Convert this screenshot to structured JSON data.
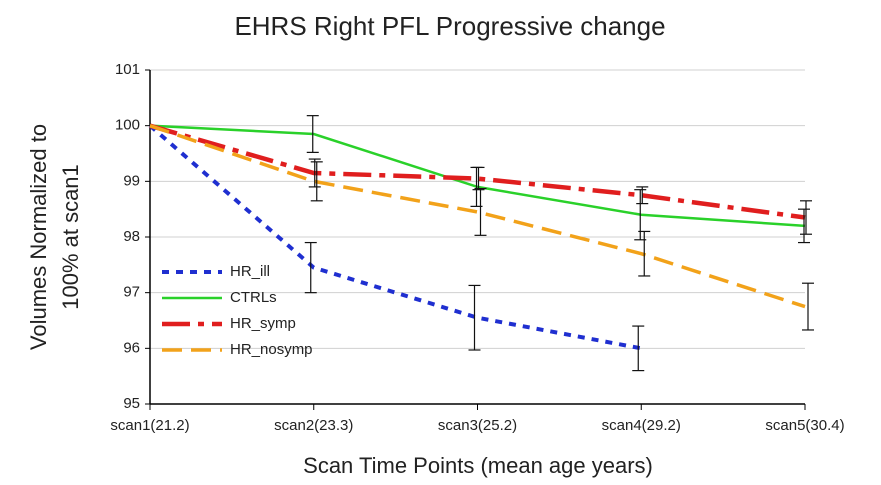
{
  "chart_data": {
    "type": "line",
    "title": "EHRS Right PFL Progressive change",
    "xlabel": "Scan Time Points (mean age years)",
    "ylabel": [
      "Volumes Normalized to",
      "100% at scan1"
    ],
    "categories": [
      "scan1(21.2)",
      "scan2(23.3)",
      "scan3(25.2)",
      "scan4(29.2)",
      "scan5(30.4)"
    ],
    "ylim": [
      95,
      101
    ],
    "yticks": [
      95,
      96,
      97,
      98,
      99,
      100,
      101
    ],
    "grid": true,
    "series": [
      {
        "name": "HR_ill",
        "color": "#1f2fd0",
        "dash": "7,7",
        "width": 4,
        "values": [
          100,
          97.45,
          96.55,
          96.0,
          null
        ],
        "errors": [
          0,
          0.45,
          0.58,
          0.4,
          null
        ]
      },
      {
        "name": "CTRLs",
        "color": "#2ad12a",
        "dash": "",
        "width": 2.5,
        "values": [
          100,
          99.85,
          98.9,
          98.4,
          98.2
        ],
        "errors": [
          0,
          0.33,
          0.35,
          0.45,
          0.3
        ]
      },
      {
        "name": "HR_symp",
        "color": "#e01e1e",
        "dash": "28,8,6,8",
        "width": 4.5,
        "values": [
          100,
          99.15,
          99.05,
          98.75,
          98.35
        ],
        "errors": [
          0,
          0.25,
          0.2,
          0.15,
          0.3
        ]
      },
      {
        "name": "HR_nosymp",
        "color": "#f2a21a",
        "dash": "20,9",
        "width": 3.5,
        "values": [
          100,
          99.0,
          98.45,
          97.7,
          96.75
        ],
        "errors": [
          0,
          0.35,
          0.42,
          0.4,
          0.42
        ]
      }
    ]
  }
}
